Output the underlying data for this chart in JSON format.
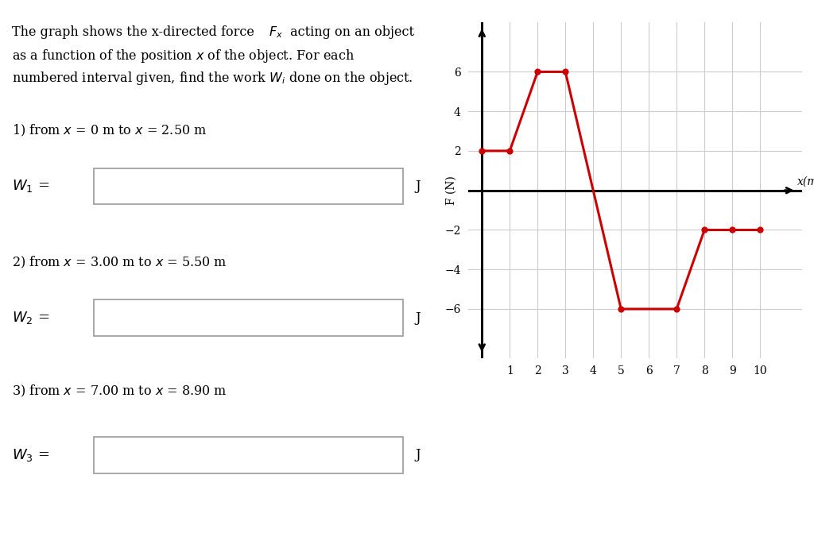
{
  "graph_x": [
    0,
    1,
    2,
    3,
    5,
    7,
    8,
    9,
    10
  ],
  "graph_y": [
    2,
    2,
    6,
    6,
    -6,
    -6,
    -2,
    -2,
    -2
  ],
  "dot_x": [
    0,
    1,
    2,
    3,
    5,
    7,
    8,
    9,
    10
  ],
  "dot_y": [
    2,
    2,
    6,
    6,
    -6,
    -6,
    -2,
    -2,
    -2
  ],
  "line_color": "#cc0000",
  "dot_color": "#cc0000",
  "xlabel": "x(m)",
  "ylabel": "F (N)",
  "xlim": [
    -0.5,
    11.5
  ],
  "ylim": [
    -8.5,
    8.5
  ],
  "xticks": [
    1,
    2,
    3,
    4,
    5,
    6,
    7,
    8,
    9,
    10
  ],
  "yticks": [
    -6,
    -4,
    -2,
    2,
    4,
    6
  ],
  "background_color": "#ffffff",
  "grid_color": "#cccccc",
  "fig_width": 10.24,
  "fig_height": 7.05,
  "title_line1": "The graph shows the x-directed force ",
  "title_Fx": "F",
  "title_line1b": " acting on an object",
  "title_line2": "as a function of the position x of the object. For each",
  "title_line3": "numbered interval given, find the work W",
  "title_line3b": " done on the object.",
  "interval1": "1) from x = 0 m to x = 2.50 m",
  "interval2": "2) from x = 3.00 m to x = 5.50 m",
  "interval3": "3) from x = 7.00 m to x = 8.90 m",
  "J_label": "J"
}
